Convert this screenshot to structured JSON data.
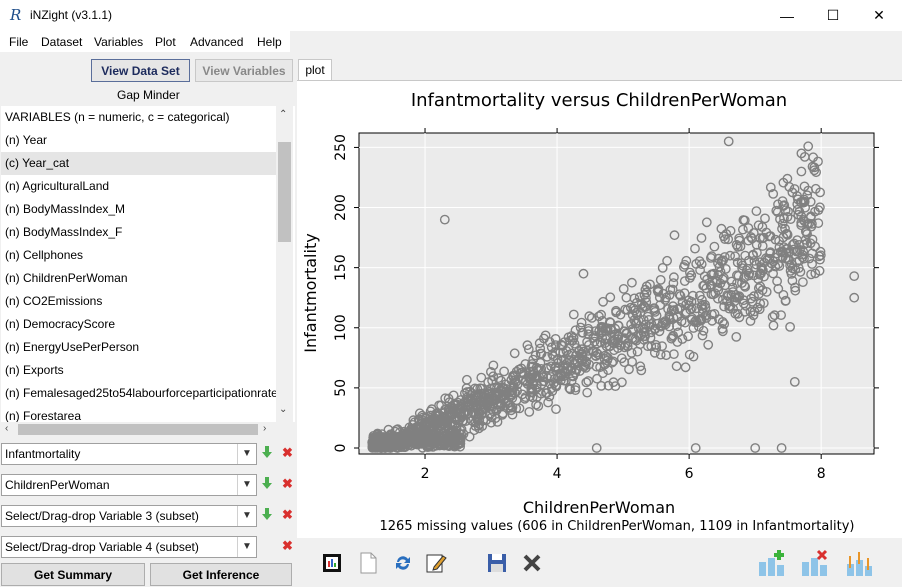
{
  "window": {
    "title": "iNZight (v3.1.1)",
    "minimize": "—",
    "maximize": "☐",
    "close": "✕"
  },
  "menu": [
    "File",
    "Dataset",
    "Variables",
    "Plot",
    "Advanced",
    "Help"
  ],
  "left": {
    "view_data": "View Data Set",
    "view_variables": "View Variables",
    "dataset_name": "Gap Minder",
    "variables_header": "VARIABLES (n = numeric, c = categorical)",
    "variables": [
      "(n) Year",
      "(c) Year_cat",
      "(n) AgriculturalLand",
      "(n) BodyMassIndex_M",
      "(n) BodyMassIndex_F",
      "(n) Cellphones",
      "(n) ChildrenPerWoman",
      "(n) CO2Emissions",
      "(n) DemocracyScore",
      "(n) EnergyUsePerPerson",
      "(n) Exports",
      "(n) Femalesaged25to54labourforceparticipationrate",
      "(n) Forestarea"
    ],
    "selected_variable_index": 1,
    "var1": "Infantmortality",
    "var2": "ChildrenPerWoman",
    "var3": "Select/Drag-drop Variable 3 (subset)",
    "var4": "Select/Drag-drop Variable 4 (subset)",
    "get_summary": "Get Summary",
    "get_inference": "Get Inference"
  },
  "tabs": [
    "plot"
  ],
  "chart_data": {
    "type": "scatter",
    "title": "Infantmortality versus ChildrenPerWoman",
    "xlabel": "ChildrenPerWoman",
    "ylabel": "Infantmortality",
    "x_ticks": [
      2,
      4,
      6,
      8
    ],
    "y_ticks": [
      0,
      50,
      100,
      150,
      200,
      250
    ],
    "xlim": [
      1.0,
      8.8
    ],
    "ylim": [
      -5,
      262
    ],
    "footnote": "1265 missing values (606 in ChildrenPerWoman, 1109 in Infantmortality)",
    "marker_color": "#808080",
    "grid": true,
    "point_summary": "dense cloud of ~2000 points with positive trend (approximate)",
    "highlight_points": [
      {
        "x": 2.3,
        "y": 190
      },
      {
        "x": 4.4,
        "y": 145
      },
      {
        "x": 6.6,
        "y": 255
      },
      {
        "x": 7.7,
        "y": 245
      },
      {
        "x": 7.7,
        "y": 230
      },
      {
        "x": 8.5,
        "y": 143
      },
      {
        "x": 8.5,
        "y": 125
      },
      {
        "x": 7.6,
        "y": 55
      },
      {
        "x": 4.6,
        "y": 0
      },
      {
        "x": 6.1,
        "y": 0
      },
      {
        "x": 7.0,
        "y": 0
      },
      {
        "x": 7.4,
        "y": 0
      }
    ]
  },
  "toolbar_icons": [
    "new-plot-icon",
    "blank-page-icon",
    "refresh-icon",
    "edit-icon",
    "save-icon",
    "delete-icon",
    "add-plot-icon",
    "remove-plot-icon",
    "inference-plot-icon"
  ]
}
